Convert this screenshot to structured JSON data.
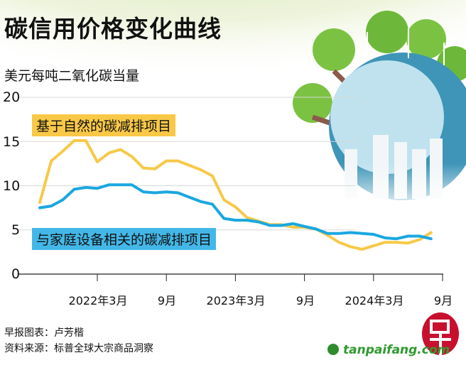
{
  "title": "碳信用价格变化曲线",
  "unit": "美元每吨二氧化碳当量",
  "credits": {
    "chart_by": "早报图表：卢芳楷",
    "source": "资料来源：标普全球大宗商品洞察",
    "watermark": "tanpaifang.com",
    "logo": "早"
  },
  "colors": {
    "nature": "#f7c948",
    "household": "#1aa7e0",
    "label_nature_bg": "#f9c846",
    "label_household_bg": "#43b8e8"
  },
  "chart_data": {
    "type": "line",
    "title": "碳信用价格变化曲线",
    "ylabel": "美元每吨二氧化碳当量",
    "ylim": [
      0,
      20
    ],
    "yticks": [
      "0",
      "5",
      "10",
      "15",
      "20"
    ],
    "grid": true,
    "xticks": [
      {
        "month": "2022-03",
        "label": "2022年3月"
      },
      {
        "month": "2022-09",
        "label": "9月"
      },
      {
        "month": "2023-03",
        "label": "2023年3月"
      },
      {
        "month": "2023-09",
        "label": "9月"
      },
      {
        "month": "2024-03",
        "label": "2024年3月"
      },
      {
        "month": "2024-09",
        "label": "9月"
      }
    ],
    "x": [
      "2021-10",
      "2021-11",
      "2021-12",
      "2022-01",
      "2022-02",
      "2022-03",
      "2022-04",
      "2022-05",
      "2022-06",
      "2022-07",
      "2022-08",
      "2022-09",
      "2022-10",
      "2022-11",
      "2022-12",
      "2023-01",
      "2023-02",
      "2023-03",
      "2023-04",
      "2023-05",
      "2023-06",
      "2023-07",
      "2023-08",
      "2023-09",
      "2023-10",
      "2023-11",
      "2023-12",
      "2024-01",
      "2024-02",
      "2024-03",
      "2024-04",
      "2024-05",
      "2024-06",
      "2024-07",
      "2024-08"
    ],
    "series": [
      {
        "name": "基于自然的碳减排项目",
        "color": "#f7c948",
        "values": [
          8.1,
          12.8,
          13.9,
          15.1,
          15.1,
          12.7,
          13.7,
          14.1,
          13.3,
          12.0,
          11.9,
          12.8,
          12.8,
          12.3,
          11.8,
          11.1,
          8.4,
          7.6,
          6.4,
          6.0,
          5.6,
          5.6,
          5.3,
          5.3,
          5.1,
          4.4,
          3.6,
          3.1,
          2.8,
          3.2,
          3.6,
          3.6,
          3.5,
          3.9,
          4.7
        ]
      },
      {
        "name": "与家庭设备相关的碳减排项目",
        "color": "#1aa7e0",
        "values": [
          7.5,
          7.7,
          8.4,
          9.6,
          9.8,
          9.7,
          10.1,
          10.1,
          10.1,
          9.3,
          9.2,
          9.3,
          9.2,
          8.7,
          8.2,
          7.9,
          6.3,
          6.1,
          6.1,
          5.9,
          5.5,
          5.5,
          5.7,
          5.4,
          5.1,
          4.6,
          4.6,
          4.7,
          4.6,
          4.5,
          4.1,
          4.0,
          4.3,
          4.3,
          4.0
        ]
      }
    ]
  }
}
